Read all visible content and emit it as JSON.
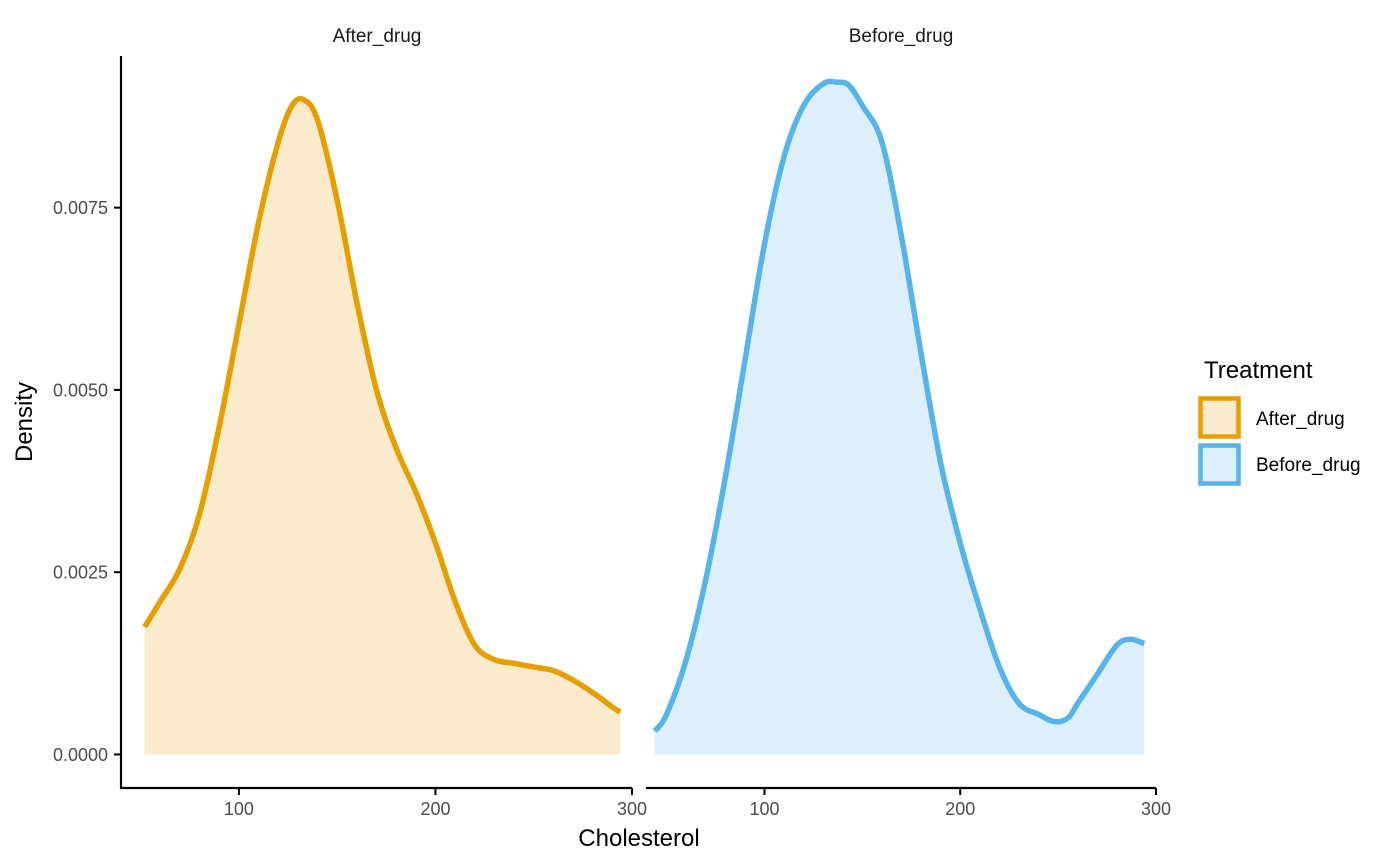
{
  "chart_data": {
    "type": "area",
    "xlabel": "Cholesterol",
    "ylabel": "Density",
    "xlim": [
      40,
      300
    ],
    "ylim": [
      -0.00046,
      0.00958
    ],
    "x_ticks": [
      100,
      200,
      300
    ],
    "x_tick_labels": [
      "100",
      "200",
      "300"
    ],
    "y_ticks": [
      0,
      0.0025,
      0.005,
      0.0075
    ],
    "y_tick_labels": [
      "0.0000",
      "0.0025",
      "0.0050",
      "0.0075"
    ],
    "grid": false,
    "legend": {
      "title": "Treatment",
      "position": "right",
      "entries": [
        "After_drug",
        "Before_drug"
      ]
    },
    "colors": {
      "After_drug": {
        "line": "#E69F00",
        "fill": "#FAEBCC"
      },
      "Before_drug": {
        "line": "#56B4E9",
        "fill": "#DDEFFB"
      }
    },
    "panels": [
      {
        "name": "After_drug",
        "x": [
          52,
          60,
          70,
          80,
          90,
          100,
          110,
          120,
          127,
          133,
          140,
          150,
          160,
          170,
          180,
          190,
          200,
          210,
          220,
          230,
          240,
          250,
          260,
          270,
          280,
          290,
          294
        ],
        "y": [
          0.00175,
          0.0021,
          0.00255,
          0.0033,
          0.0045,
          0.0059,
          0.0073,
          0.0084,
          0.0089,
          0.00898,
          0.0087,
          0.0076,
          0.0062,
          0.005,
          0.0042,
          0.0036,
          0.0029,
          0.0021,
          0.0015,
          0.0013,
          0.00125,
          0.0012,
          0.00115,
          0.00102,
          0.00085,
          0.00065,
          0.00058
        ]
      },
      {
        "name": "Before_drug",
        "x": [
          44,
          50,
          60,
          70,
          80,
          90,
          100,
          110,
          120,
          130,
          137,
          143,
          150,
          160,
          170,
          180,
          190,
          200,
          210,
          220,
          230,
          240,
          248,
          255,
          260,
          270,
          280,
          287,
          294
        ],
        "y": [
          0.00032,
          0.00055,
          0.0013,
          0.0024,
          0.0038,
          0.0054,
          0.007,
          0.0082,
          0.0089,
          0.0092,
          0.00922,
          0.00918,
          0.0089,
          0.0084,
          0.0071,
          0.0055,
          0.004,
          0.0029,
          0.002,
          0.0012,
          0.0007,
          0.00055,
          0.00045,
          0.0005,
          0.0007,
          0.0011,
          0.0015,
          0.00158,
          0.00152
        ]
      }
    ]
  }
}
